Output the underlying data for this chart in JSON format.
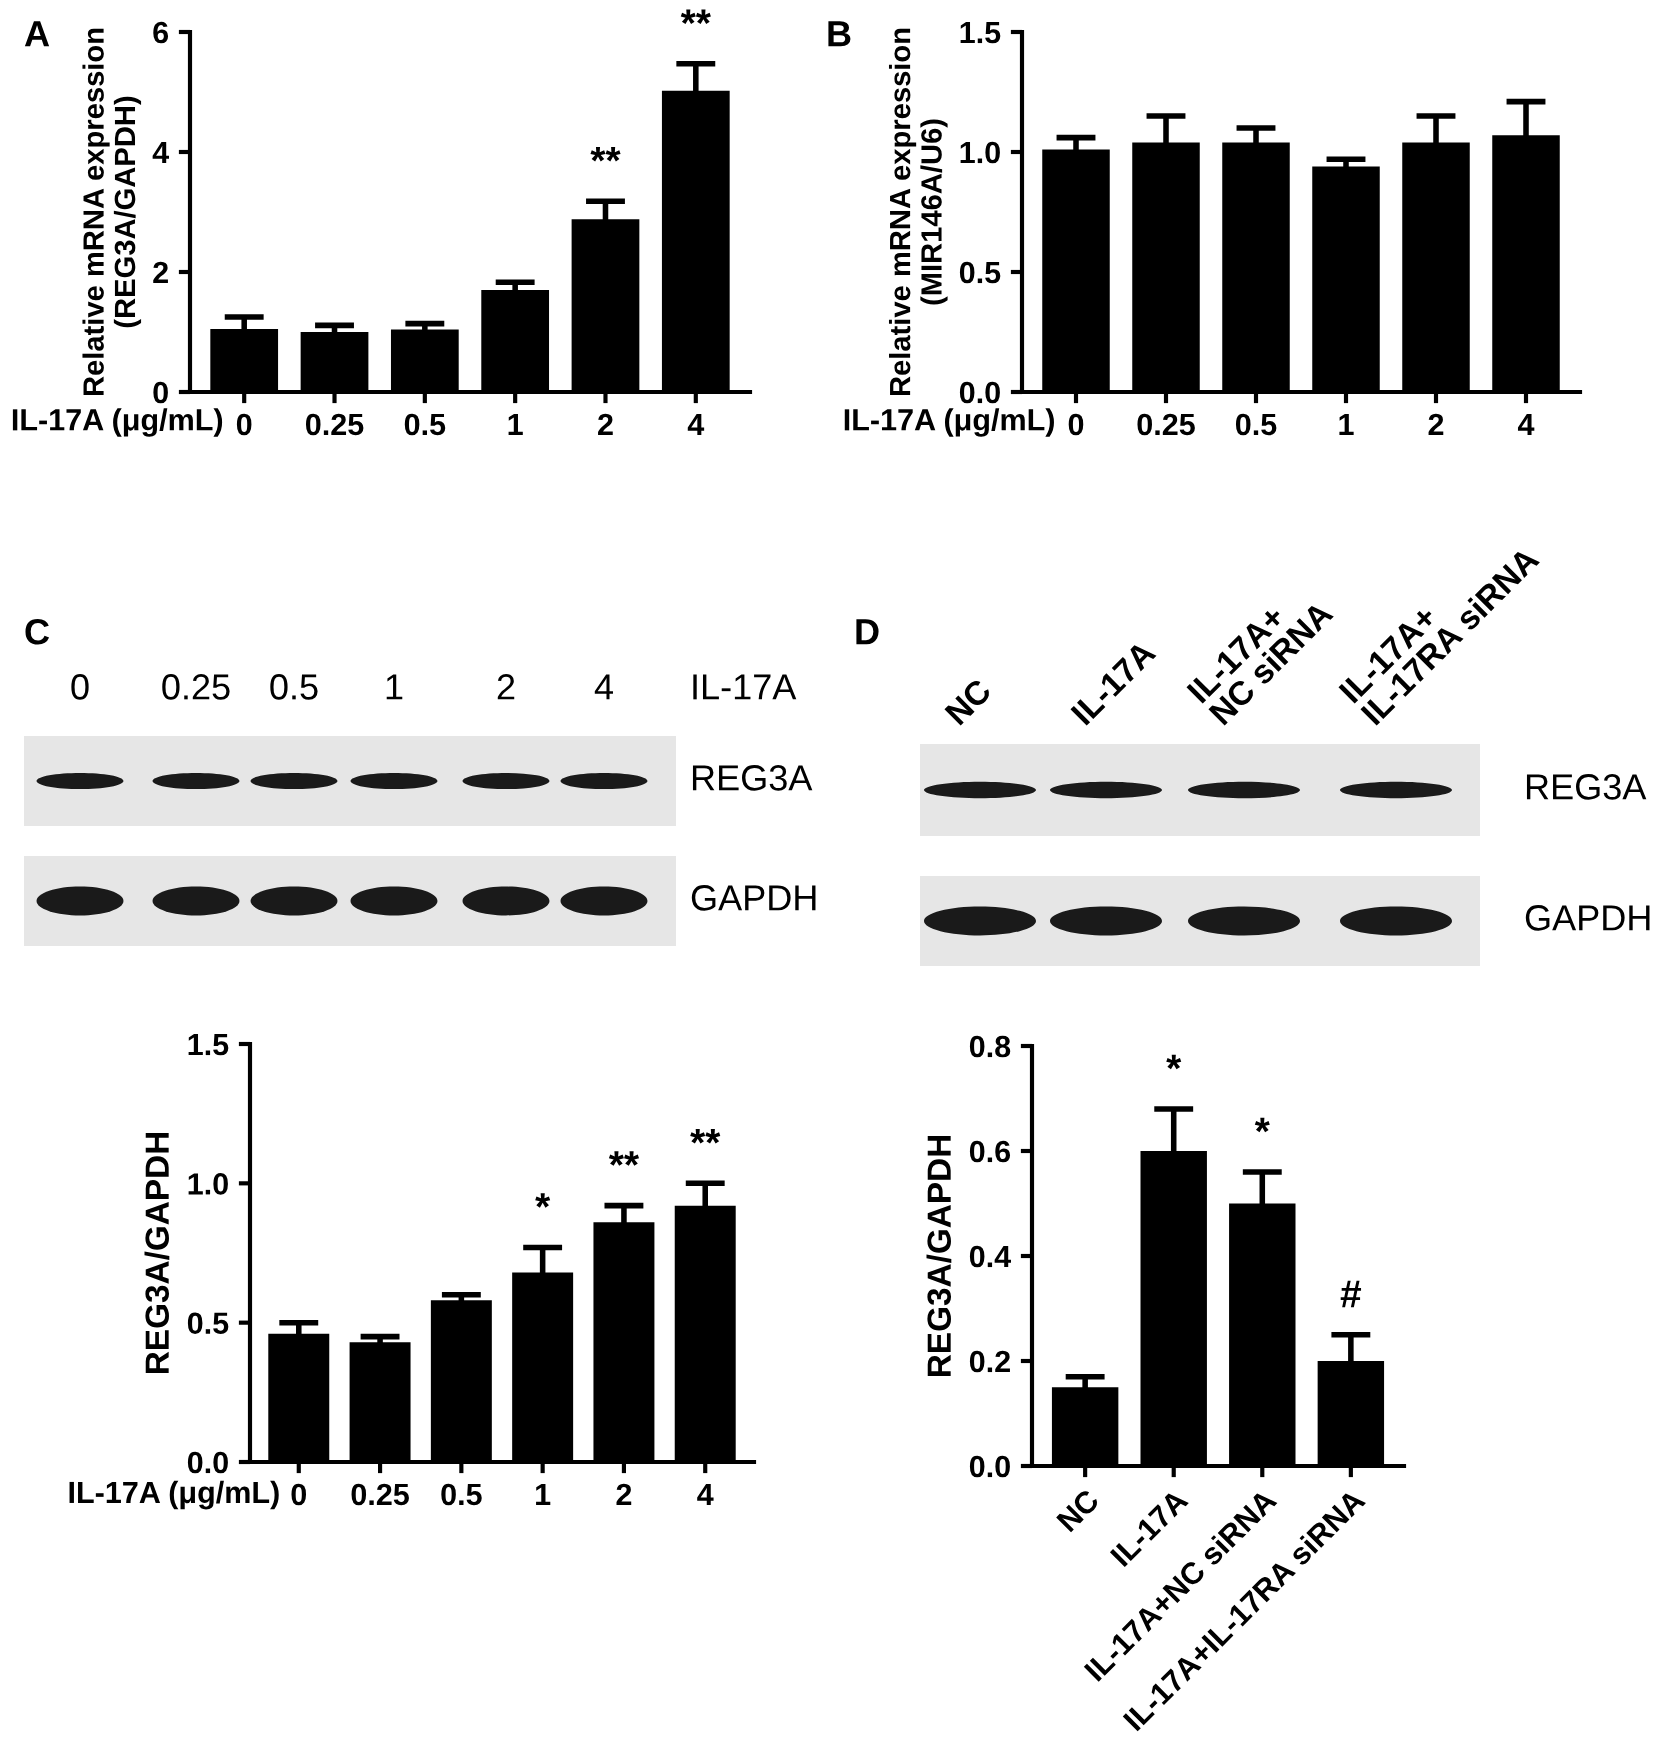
{
  "chart_data": [
    {
      "type": "bar",
      "title": "A",
      "xlabel": "IL-17A (μg/mL)",
      "ylabel": "Relative mRNA expression\n(REG3A/GAPDH)",
      "categories": [
        "0",
        "0.25",
        "0.5",
        "1",
        "2",
        "4"
      ],
      "values": [
        1.05,
        1.0,
        1.04,
        1.7,
        2.88,
        5.02
      ],
      "errors": [
        0.2,
        0.11,
        0.1,
        0.13,
        0.3,
        0.45
      ],
      "color": "#000000",
      "ylim": [
        0,
        6
      ],
      "yticks": [
        0,
        2,
        4,
        6
      ],
      "grid": false,
      "legend": false,
      "annotations": [
        {
          "text": "**",
          "x": "2",
          "y": 2.88
        },
        {
          "text": "**",
          "x": "4",
          "y": 5.02
        }
      ]
    },
    {
      "type": "bar",
      "title": "B",
      "xlabel": "IL-17A (μg/mL)",
      "ylabel": "Relative mRNA expression\n(MIR146A/U6)",
      "categories": [
        "0",
        "0.25",
        "0.5",
        "1",
        "2",
        "4"
      ],
      "values": [
        1.01,
        1.04,
        1.04,
        0.94,
        1.04,
        1.07
      ],
      "errors": [
        0.05,
        0.11,
        0.06,
        0.03,
        0.11,
        0.14
      ],
      "color": "#000000",
      "ylim": [
        0,
        1.5
      ],
      "yticks": [
        {
          "value": 0,
          "label": "0.0"
        },
        {
          "value": 0.5,
          "label": "0.5"
        },
        {
          "value": 1.0,
          "label": "1.0"
        },
        {
          "value": 1.5,
          "label": "1.5"
        }
      ],
      "grid": false,
      "legend": false
    },
    {
      "type": "bar",
      "title": "C",
      "xlabel": "IL-17A (μg/mL)",
      "ylabel": "REG3A/GAPDH",
      "categories": [
        "0",
        "0.25",
        "0.5",
        "1",
        "2",
        "4"
      ],
      "values": [
        0.46,
        0.43,
        0.58,
        0.68,
        0.86,
        0.92
      ],
      "errors": [
        0.04,
        0.02,
        0.02,
        0.09,
        0.06,
        0.08
      ],
      "color": "#000000",
      "ylim": [
        0,
        1.5
      ],
      "yticks": [
        {
          "value": 0,
          "label": "0.0"
        },
        {
          "value": 0.5,
          "label": "0.5"
        },
        {
          "value": 1.0,
          "label": "1.0"
        },
        {
          "value": 1.5,
          "label": "1.5"
        }
      ],
      "grid": false,
      "legend": false,
      "annotations": [
        {
          "text": "*",
          "x": "1",
          "y": 0.68
        },
        {
          "text": "**",
          "x": "2",
          "y": 0.86
        },
        {
          "text": "**",
          "x": "4",
          "y": 0.92
        },
        "0",
        "0.25",
        "0.5",
        "1",
        "2",
        "4",
        "IL-17A",
        "REG3A",
        "GAPDH"
      ]
    },
    {
      "type": "bar",
      "title": "D",
      "ylabel": "REG3A/GAPDH",
      "categories": [
        "NC",
        "IL-17A",
        "IL-17A+NC siRNA",
        "IL-17A+IL-17RA siRNA"
      ],
      "values": [
        0.15,
        0.6,
        0.5,
        0.2
      ],
      "errors": [
        0.02,
        0.08,
        0.06,
        0.05
      ],
      "color": "#000000",
      "ylim": [
        0,
        0.8
      ],
      "yticks": [
        {
          "value": 0,
          "label": "0.0"
        },
        {
          "value": 0.2,
          "label": "0.2"
        },
        {
          "value": 0.4,
          "label": "0.4"
        },
        {
          "value": 0.6,
          "label": "0.6"
        },
        {
          "value": 0.8,
          "label": "0.8"
        }
      ],
      "grid": false,
      "legend": false,
      "annotations": [
        {
          "text": "*",
          "x": "IL-17A",
          "y": 0.6
        },
        {
          "text": "*",
          "x": "IL-17A+NC siRNA",
          "y": 0.5
        },
        {
          "text": "#",
          "x": "IL-17A+IL-17RA siRNA",
          "y": 0.2
        },
        "NC",
        "IL-17A",
        "IL-17A+\nNC siRNA",
        "IL-17A+\nIL-17RA siRNA",
        "REG3A",
        "GAPDH"
      ]
    }
  ]
}
